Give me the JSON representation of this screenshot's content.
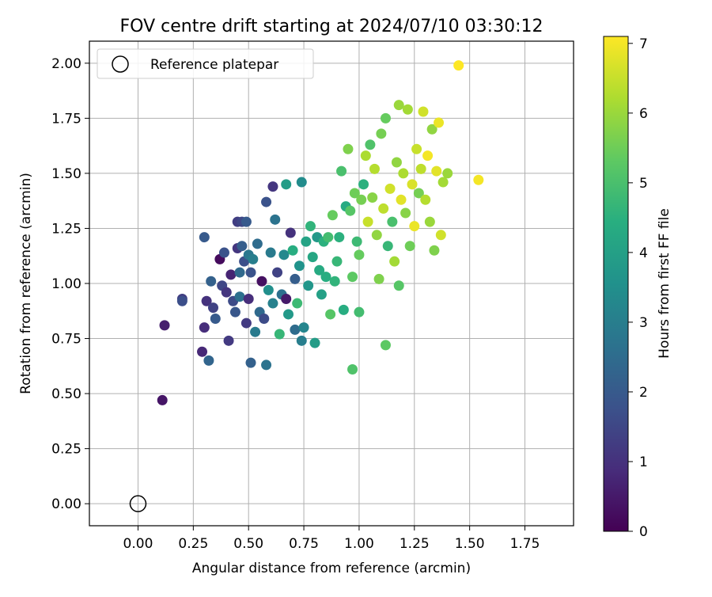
{
  "chart_data": {
    "type": "scatter",
    "title": "FOV centre drift starting at 2024/07/10 03:30:12",
    "xlabel": "Angular distance from reference (arcmin)",
    "ylabel": "Rotation from reference (arcmin)",
    "xlim": [
      -0.22,
      1.97
    ],
    "ylim": [
      -0.1,
      2.1
    ],
    "xticks": [
      "0.00",
      "0.25",
      "0.50",
      "0.75",
      "1.00",
      "1.25",
      "1.50",
      "1.75"
    ],
    "xtick_values": [
      0,
      0.25,
      0.5,
      0.75,
      1.0,
      1.25,
      1.5,
      1.75
    ],
    "yticks": [
      "0.00",
      "0.25",
      "0.50",
      "0.75",
      "1.00",
      "1.25",
      "1.50",
      "1.75",
      "2.00"
    ],
    "ytick_values": [
      0,
      0.25,
      0.5,
      0.75,
      1.0,
      1.25,
      1.5,
      1.75,
      2.0
    ],
    "grid": true,
    "legend": {
      "placement": "top-left",
      "entries": [
        "Reference platepar"
      ]
    },
    "reference_point": {
      "x": 0.0,
      "y": 0.0
    },
    "colorbar": {
      "label": "Hours from first FF file",
      "range": [
        0,
        7.1
      ],
      "ticks": [
        "0",
        "1",
        "2",
        "3",
        "4",
        "5",
        "6",
        "7"
      ],
      "tick_values": [
        0,
        1,
        2,
        3,
        4,
        5,
        6,
        7
      ],
      "colormap": "viridis"
    },
    "points": [
      {
        "x": 0.11,
        "y": 0.47,
        "h": 0.4
      },
      {
        "x": 0.12,
        "y": 0.81,
        "h": 0.6
      },
      {
        "x": 0.2,
        "y": 0.93,
        "h": 1.3
      },
      {
        "x": 0.2,
        "y": 0.92,
        "h": 1.7
      },
      {
        "x": 0.29,
        "y": 0.69,
        "h": 0.8
      },
      {
        "x": 0.3,
        "y": 0.8,
        "h": 0.9
      },
      {
        "x": 0.3,
        "y": 1.21,
        "h": 2.0
      },
      {
        "x": 0.31,
        "y": 0.92,
        "h": 1.0
      },
      {
        "x": 0.32,
        "y": 0.65,
        "h": 2.3
      },
      {
        "x": 0.33,
        "y": 1.01,
        "h": 2.2
      },
      {
        "x": 0.34,
        "y": 0.89,
        "h": 1.4
      },
      {
        "x": 0.35,
        "y": 0.84,
        "h": 2.0
      },
      {
        "x": 0.37,
        "y": 1.11,
        "h": 0.2
      },
      {
        "x": 0.38,
        "y": 0.99,
        "h": 1.5
      },
      {
        "x": 0.39,
        "y": 1.14,
        "h": 1.8
      },
      {
        "x": 0.4,
        "y": 0.96,
        "h": 1.1
      },
      {
        "x": 0.41,
        "y": 0.74,
        "h": 1.2
      },
      {
        "x": 0.42,
        "y": 1.04,
        "h": 0.7
      },
      {
        "x": 0.43,
        "y": 0.92,
        "h": 1.6
      },
      {
        "x": 0.44,
        "y": 0.87,
        "h": 1.9
      },
      {
        "x": 0.45,
        "y": 1.28,
        "h": 1.3
      },
      {
        "x": 0.45,
        "y": 1.16,
        "h": 1.1
      },
      {
        "x": 0.46,
        "y": 1.05,
        "h": 2.4
      },
      {
        "x": 0.46,
        "y": 0.94,
        "h": 2.6
      },
      {
        "x": 0.47,
        "y": 1.28,
        "h": 1.5
      },
      {
        "x": 0.47,
        "y": 1.17,
        "h": 2.1
      },
      {
        "x": 0.48,
        "y": 1.1,
        "h": 1.7
      },
      {
        "x": 0.49,
        "y": 0.82,
        "h": 1.2
      },
      {
        "x": 0.49,
        "y": 1.28,
        "h": 2.0
      },
      {
        "x": 0.5,
        "y": 0.93,
        "h": 0.9
      },
      {
        "x": 0.5,
        "y": 1.13,
        "h": 2.8
      },
      {
        "x": 0.51,
        "y": 0.64,
        "h": 2.2
      },
      {
        "x": 0.51,
        "y": 1.05,
        "h": 1.8
      },
      {
        "x": 0.52,
        "y": 1.11,
        "h": 3.0
      },
      {
        "x": 0.53,
        "y": 0.78,
        "h": 2.9
      },
      {
        "x": 0.54,
        "y": 1.18,
        "h": 2.5
      },
      {
        "x": 0.55,
        "y": 0.87,
        "h": 2.4
      },
      {
        "x": 0.56,
        "y": 1.01,
        "h": 0.3
      },
      {
        "x": 0.57,
        "y": 0.84,
        "h": 1.6
      },
      {
        "x": 0.58,
        "y": 1.37,
        "h": 1.8
      },
      {
        "x": 0.58,
        "y": 0.63,
        "h": 2.7
      },
      {
        "x": 0.59,
        "y": 0.97,
        "h": 3.5
      },
      {
        "x": 0.6,
        "y": 1.14,
        "h": 2.9
      },
      {
        "x": 0.61,
        "y": 1.44,
        "h": 1.1
      },
      {
        "x": 0.61,
        "y": 0.91,
        "h": 3.1
      },
      {
        "x": 0.62,
        "y": 1.29,
        "h": 2.7
      },
      {
        "x": 0.63,
        "y": 1.05,
        "h": 1.4
      },
      {
        "x": 0.64,
        "y": 0.77,
        "h": 4.7
      },
      {
        "x": 0.65,
        "y": 0.95,
        "h": 2.6
      },
      {
        "x": 0.66,
        "y": 1.13,
        "h": 3.3
      },
      {
        "x": 0.67,
        "y": 0.93,
        "h": 0.5
      },
      {
        "x": 0.67,
        "y": 1.45,
        "h": 3.9
      },
      {
        "x": 0.68,
        "y": 0.86,
        "h": 3.8
      },
      {
        "x": 0.69,
        "y": 1.23,
        "h": 1.0
      },
      {
        "x": 0.7,
        "y": 1.15,
        "h": 4.4
      },
      {
        "x": 0.71,
        "y": 1.02,
        "h": 2.1
      },
      {
        "x": 0.71,
        "y": 0.79,
        "h": 2.5
      },
      {
        "x": 0.72,
        "y": 0.91,
        "h": 4.8
      },
      {
        "x": 0.73,
        "y": 1.08,
        "h": 3.6
      },
      {
        "x": 0.74,
        "y": 1.46,
        "h": 3.4
      },
      {
        "x": 0.74,
        "y": 0.74,
        "h": 3.0
      },
      {
        "x": 0.75,
        "y": 0.8,
        "h": 3.2
      },
      {
        "x": 0.76,
        "y": 1.19,
        "h": 4.1
      },
      {
        "x": 0.77,
        "y": 0.99,
        "h": 3.7
      },
      {
        "x": 0.78,
        "y": 1.26,
        "h": 4.6
      },
      {
        "x": 0.79,
        "y": 1.12,
        "h": 4.2
      },
      {
        "x": 0.8,
        "y": 0.73,
        "h": 3.9
      },
      {
        "x": 0.81,
        "y": 1.21,
        "h": 3.8
      },
      {
        "x": 0.82,
        "y": 1.06,
        "h": 4.3
      },
      {
        "x": 0.83,
        "y": 0.95,
        "h": 4.0
      },
      {
        "x": 0.84,
        "y": 1.19,
        "h": 4.5
      },
      {
        "x": 0.85,
        "y": 1.03,
        "h": 4.4
      },
      {
        "x": 0.86,
        "y": 1.21,
        "h": 4.9
      },
      {
        "x": 0.87,
        "y": 0.86,
        "h": 5.2
      },
      {
        "x": 0.88,
        "y": 1.31,
        "h": 5.4
      },
      {
        "x": 0.89,
        "y": 1.01,
        "h": 4.6
      },
      {
        "x": 0.9,
        "y": 1.1,
        "h": 4.7
      },
      {
        "x": 0.91,
        "y": 1.21,
        "h": 4.5
      },
      {
        "x": 0.92,
        "y": 1.51,
        "h": 5.0
      },
      {
        "x": 0.93,
        "y": 0.88,
        "h": 4.4
      },
      {
        "x": 0.94,
        "y": 1.35,
        "h": 4.3
      },
      {
        "x": 0.95,
        "y": 1.61,
        "h": 5.7
      },
      {
        "x": 0.96,
        "y": 1.33,
        "h": 5.2
      },
      {
        "x": 0.97,
        "y": 0.61,
        "h": 5.1
      },
      {
        "x": 0.97,
        "y": 1.03,
        "h": 5.3
      },
      {
        "x": 0.98,
        "y": 1.41,
        "h": 5.5
      },
      {
        "x": 0.99,
        "y": 1.19,
        "h": 4.8
      },
      {
        "x": 1.0,
        "y": 0.87,
        "h": 4.9
      },
      {
        "x": 1.0,
        "y": 1.13,
        "h": 5.4
      },
      {
        "x": 1.01,
        "y": 1.38,
        "h": 5.6
      },
      {
        "x": 1.02,
        "y": 1.45,
        "h": 4.5
      },
      {
        "x": 1.03,
        "y": 1.58,
        "h": 6.2
      },
      {
        "x": 1.04,
        "y": 1.28,
        "h": 6.5
      },
      {
        "x": 1.05,
        "y": 1.63,
        "h": 5.1
      },
      {
        "x": 1.06,
        "y": 1.39,
        "h": 5.8
      },
      {
        "x": 1.07,
        "y": 1.52,
        "h": 6.3
      },
      {
        "x": 1.08,
        "y": 1.22,
        "h": 5.9
      },
      {
        "x": 1.09,
        "y": 1.02,
        "h": 5.7
      },
      {
        "x": 1.1,
        "y": 1.68,
        "h": 5.6
      },
      {
        "x": 1.11,
        "y": 1.34,
        "h": 6.4
      },
      {
        "x": 1.12,
        "y": 0.72,
        "h": 5.3
      },
      {
        "x": 1.12,
        "y": 1.75,
        "h": 5.4
      },
      {
        "x": 1.13,
        "y": 1.17,
        "h": 4.7
      },
      {
        "x": 1.14,
        "y": 1.43,
        "h": 6.6
      },
      {
        "x": 1.15,
        "y": 1.28,
        "h": 5.0
      },
      {
        "x": 1.16,
        "y": 1.1,
        "h": 6.1
      },
      {
        "x": 1.17,
        "y": 1.55,
        "h": 5.9
      },
      {
        "x": 1.18,
        "y": 1.81,
        "h": 6.0
      },
      {
        "x": 1.18,
        "y": 0.99,
        "h": 5.2
      },
      {
        "x": 1.19,
        "y": 1.38,
        "h": 6.8
      },
      {
        "x": 1.2,
        "y": 1.5,
        "h": 6.2
      },
      {
        "x": 1.21,
        "y": 1.32,
        "h": 5.8
      },
      {
        "x": 1.22,
        "y": 1.79,
        "h": 6.1
      },
      {
        "x": 1.23,
        "y": 1.17,
        "h": 5.5
      },
      {
        "x": 1.24,
        "y": 1.45,
        "h": 6.7
      },
      {
        "x": 1.25,
        "y": 1.26,
        "h": 6.9
      },
      {
        "x": 1.26,
        "y": 1.61,
        "h": 6.5
      },
      {
        "x": 1.27,
        "y": 1.41,
        "h": 5.6
      },
      {
        "x": 1.28,
        "y": 1.52,
        "h": 6.4
      },
      {
        "x": 1.29,
        "y": 1.78,
        "h": 6.6
      },
      {
        "x": 1.3,
        "y": 1.38,
        "h": 6.3
      },
      {
        "x": 1.31,
        "y": 1.58,
        "h": 7.0
      },
      {
        "x": 1.32,
        "y": 1.28,
        "h": 6.0
      },
      {
        "x": 1.33,
        "y": 1.7,
        "h": 5.9
      },
      {
        "x": 1.34,
        "y": 1.15,
        "h": 5.7
      },
      {
        "x": 1.35,
        "y": 1.51,
        "h": 6.8
      },
      {
        "x": 1.36,
        "y": 1.73,
        "h": 6.9
      },
      {
        "x": 1.37,
        "y": 1.22,
        "h": 6.6
      },
      {
        "x": 1.38,
        "y": 1.46,
        "h": 6.1
      },
      {
        "x": 1.4,
        "y": 1.5,
        "h": 6.0
      },
      {
        "x": 1.45,
        "y": 1.99,
        "h": 7.1
      },
      {
        "x": 1.54,
        "y": 1.47,
        "h": 7.0
      }
    ]
  }
}
